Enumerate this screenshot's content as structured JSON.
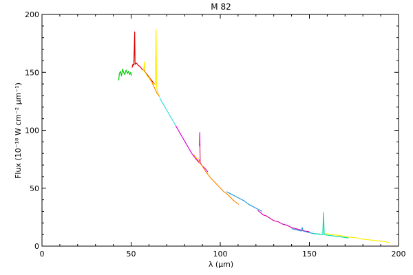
{
  "chart_data": {
    "type": "line",
    "title": "M 82",
    "xlabel": "λ (μm)",
    "ylabel": "Flux (10⁻¹⁸ W cm⁻² μm⁻¹)",
    "xlim": [
      0,
      200
    ],
    "ylim": [
      0,
      200
    ],
    "x_ticks": [
      0,
      50,
      100,
      150,
      200
    ],
    "y_ticks": [
      0,
      50,
      100,
      150,
      200
    ],
    "grid": false,
    "series": [
      {
        "color": "#00cc00",
        "points": [
          [
            43.0,
            143
          ],
          [
            43.4,
            149
          ],
          [
            44.0,
            151
          ],
          [
            44.6,
            147
          ],
          [
            45.2,
            153
          ],
          [
            45.8,
            150
          ],
          [
            46.5,
            148
          ],
          [
            47.2,
            152
          ],
          [
            48.0,
            149
          ],
          [
            48.6,
            151
          ],
          [
            49.2,
            148
          ],
          [
            49.8,
            150
          ],
          [
            50.2,
            147
          ]
        ]
      },
      {
        "color": "#dd0000",
        "points": [
          [
            50.5,
            154
          ],
          [
            51.0,
            157
          ],
          [
            51.5,
            156
          ],
          [
            52.0,
            185
          ],
          [
            52.2,
            157
          ],
          [
            53.0,
            158
          ],
          [
            54.0,
            156
          ],
          [
            55.0,
            155
          ],
          [
            56.0,
            153
          ],
          [
            57.0,
            152
          ],
          [
            58.0,
            150
          ],
          [
            59.0,
            148
          ],
          [
            60.0,
            146
          ],
          [
            61.0,
            144
          ],
          [
            62.0,
            142
          ],
          [
            63.0,
            140
          ]
        ]
      },
      {
        "color": "#ffee00",
        "points": [
          [
            56.5,
            151
          ],
          [
            57.0,
            152
          ],
          [
            57.5,
            159
          ],
          [
            57.8,
            150
          ],
          [
            59.0,
            147
          ],
          [
            60.5,
            144
          ],
          [
            62.0,
            141
          ],
          [
            63.5,
            139
          ],
          [
            64.0,
            187
          ],
          [
            64.3,
            138
          ],
          [
            64.8,
            133
          ],
          [
            65.5,
            130
          ]
        ]
      },
      {
        "color": "#ff8800",
        "points": [
          [
            60.0,
            146
          ],
          [
            61.5,
            142
          ],
          [
            63.0,
            137
          ],
          [
            64.5,
            132
          ],
          [
            66.0,
            129
          ]
        ]
      },
      {
        "color": "#33dddd",
        "points": [
          [
            66.0,
            128
          ],
          [
            67.5,
            124
          ],
          [
            69.0,
            120
          ],
          [
            70.5,
            116
          ],
          [
            72.0,
            112
          ],
          [
            73.5,
            108
          ],
          [
            75.0,
            104
          ]
        ]
      },
      {
        "color": "#dd00dd",
        "points": [
          [
            75.0,
            104
          ],
          [
            76.5,
            100
          ],
          [
            78.0,
            96
          ],
          [
            79.5,
            92
          ],
          [
            81.0,
            88
          ],
          [
            82.5,
            84
          ],
          [
            84.0,
            80
          ],
          [
            85.5,
            77
          ],
          [
            87.0,
            74
          ],
          [
            88.2,
            72
          ],
          [
            88.5,
            98
          ],
          [
            88.8,
            72
          ],
          [
            90.0,
            69
          ],
          [
            91.5,
            67
          ],
          [
            92.5,
            65
          ],
          [
            93.0,
            64
          ]
        ]
      },
      {
        "color": "#ffee00",
        "points": [
          [
            88.2,
            75
          ],
          [
            88.4,
            86
          ],
          [
            88.6,
            72
          ]
        ]
      },
      {
        "color": "#ff8800",
        "points": [
          [
            85.0,
            79
          ],
          [
            87.0,
            75
          ],
          [
            89.5,
            70
          ],
          [
            92.0,
            64
          ],
          [
            94.5,
            59
          ],
          [
            97.0,
            55
          ],
          [
            99.5,
            51
          ],
          [
            102.0,
            47
          ],
          [
            104.5,
            44
          ],
          [
            107.0,
            40
          ],
          [
            109.5,
            37
          ],
          [
            110.5,
            36
          ]
        ]
      },
      {
        "color": "#2299dd",
        "points": [
          [
            103.5,
            47
          ],
          [
            106.0,
            45
          ],
          [
            108.5,
            43
          ],
          [
            111.0,
            41
          ],
          [
            113.5,
            39
          ],
          [
            116.0,
            36
          ],
          [
            118.5,
            34
          ],
          [
            121.0,
            32
          ],
          [
            123.5,
            30
          ]
        ]
      },
      {
        "color": "#dd00aa",
        "points": [
          [
            121.0,
            31
          ],
          [
            122.5,
            29
          ],
          [
            124.0,
            27
          ],
          [
            126.0,
            26
          ],
          [
            128.0,
            24
          ],
          [
            130.0,
            22
          ],
          [
            132.5,
            21
          ],
          [
            135.0,
            19
          ],
          [
            137.5,
            18
          ],
          [
            140.0,
            16
          ],
          [
            142.5,
            15
          ],
          [
            145.0,
            14
          ],
          [
            147.5,
            13
          ],
          [
            150.0,
            12.5
          ]
        ]
      },
      {
        "color": "#2299dd",
        "points": [
          [
            140.0,
            15
          ],
          [
            143.0,
            14
          ],
          [
            145.5,
            13
          ],
          [
            146.0,
            16
          ],
          [
            146.5,
            13
          ],
          [
            149.0,
            12
          ],
          [
            152.0,
            11
          ],
          [
            154.5,
            10.5
          ],
          [
            156.0,
            10.5
          ]
        ]
      },
      {
        "color": "#00ddaa",
        "points": [
          [
            152.0,
            11
          ],
          [
            154.0,
            10.5
          ],
          [
            156.0,
            10.2
          ],
          [
            157.5,
            10
          ],
          [
            157.9,
            29
          ],
          [
            158.3,
            10
          ],
          [
            160.0,
            9.5
          ],
          [
            162.5,
            9
          ],
          [
            165.0,
            8.5
          ],
          [
            167.5,
            8
          ],
          [
            170.0,
            7.5
          ],
          [
            172.0,
            7
          ]
        ]
      },
      {
        "color": "#ffee00",
        "points": [
          [
            159.0,
            11
          ],
          [
            162.0,
            10
          ],
          [
            165.0,
            9.5
          ],
          [
            168.0,
            9
          ],
          [
            171.0,
            8
          ],
          [
            174.0,
            7.5
          ],
          [
            177.0,
            7
          ],
          [
            180.0,
            6
          ],
          [
            183.0,
            5.5
          ],
          [
            186.0,
            5
          ],
          [
            189.0,
            4.5
          ],
          [
            192.0,
            4
          ],
          [
            195.0,
            3
          ]
        ]
      }
    ]
  }
}
